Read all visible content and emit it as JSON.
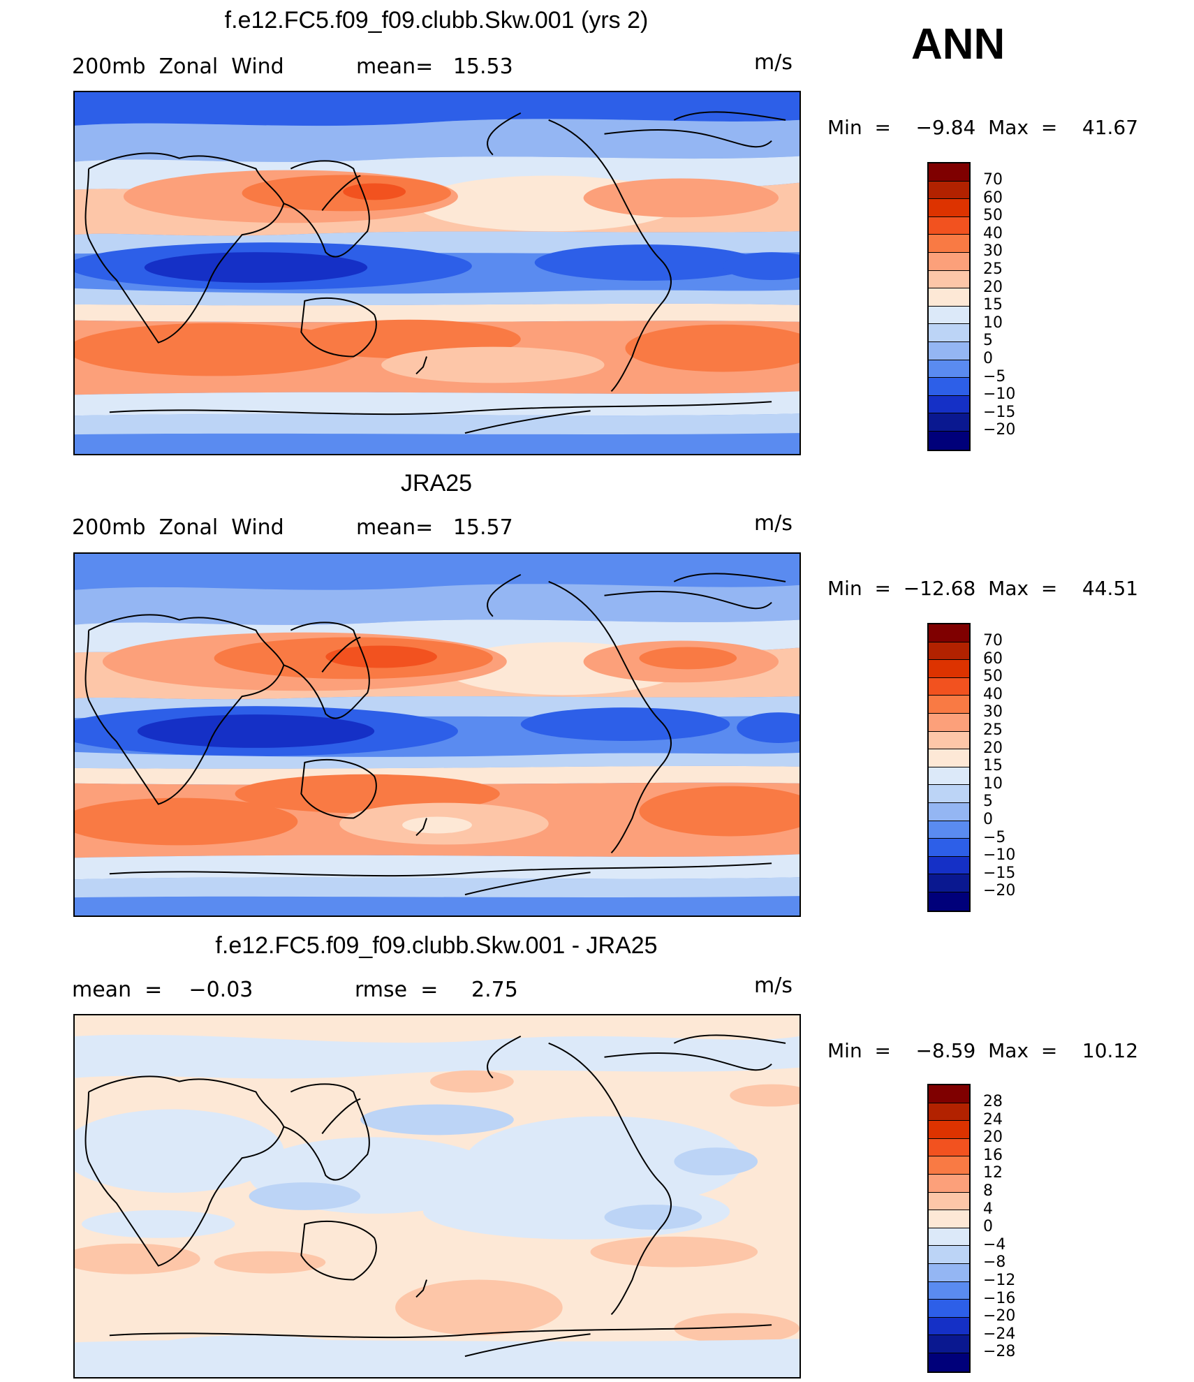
{
  "season": "ANN",
  "panels": [
    {
      "title": "f.e12.FC5.f09_f09.clubb.Skw.001 (yrs 2)",
      "left_label": "200mb  Zonal  Wind",
      "mid_label": "mean=   15.53",
      "units": "m/s",
      "min_max": "Min  =    −9.84  Max  =    41.67",
      "colorbar_ticks": [
        "70",
        "60",
        "50",
        "40",
        "30",
        "25",
        "20",
        "15",
        "10",
        "5",
        "0",
        "−5",
        "−10",
        "−15",
        "−20"
      ]
    },
    {
      "title": "JRA25",
      "left_label": "200mb  Zonal  Wind",
      "mid_label": "mean=   15.57",
      "units": "m/s",
      "min_max": "Min  =  −12.68  Max  =    44.51",
      "colorbar_ticks": [
        "70",
        "60",
        "50",
        "40",
        "30",
        "25",
        "20",
        "15",
        "10",
        "5",
        "0",
        "−5",
        "−10",
        "−15",
        "−20"
      ]
    },
    {
      "title": "f.e12.FC5.f09_f09.clubb.Skw.001 - JRA25",
      "left_label": "mean  =    −0.03",
      "mid_label": "rmse  =     2.75",
      "units": "m/s",
      "min_max": "Min  =    −8.59  Max  =    10.12",
      "colorbar_ticks": [
        "28",
        "24",
        "20",
        "16",
        "12",
        "8",
        "4",
        "0",
        "−4",
        "−8",
        "−12",
        "−16",
        "−20",
        "−24",
        "−28"
      ]
    }
  ],
  "colors": {
    "scale": [
      "#7f0000",
      "#b22200",
      "#dd3300",
      "#f2521f",
      "#f97a44",
      "#fca07a",
      "#fdc6a8",
      "#fde8d6",
      "#dce9f9",
      "#bcd4f6",
      "#94b6f3",
      "#5a8bf0",
      "#2d5fe8",
      "#1530c6",
      "#0a1890",
      "#00007a"
    ]
  }
}
